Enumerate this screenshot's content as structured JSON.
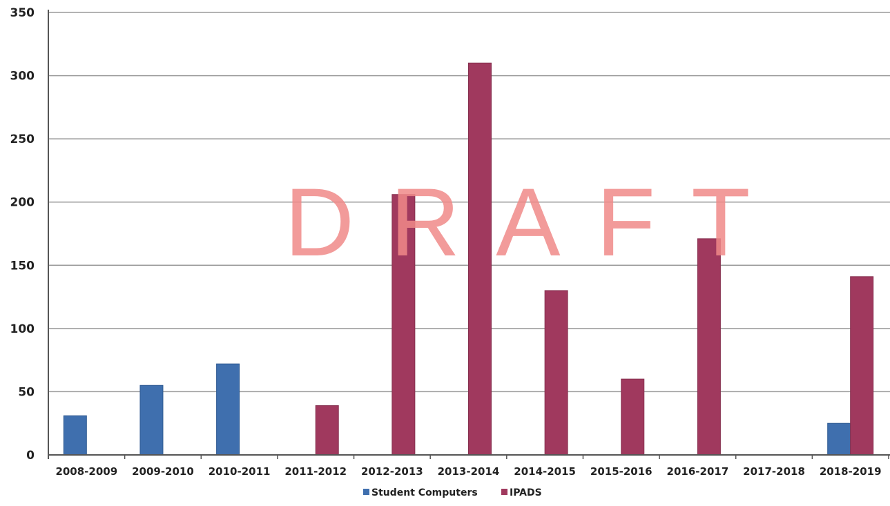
{
  "chart_data": {
    "type": "bar",
    "categories": [
      "2008-2009",
      "2009-2010",
      "2010-2011",
      "2011-2012",
      "2012-2013",
      "2013-2014",
      "2014-2015",
      "2015-2016",
      "2016-2017",
      "2017-2018",
      "2018-2019"
    ],
    "series": [
      {
        "name": "Student Computers",
        "color": "#3f6fae",
        "values": [
          31,
          55,
          72,
          0,
          0,
          0,
          0,
          0,
          0,
          0,
          25
        ]
      },
      {
        "name": "IPADS",
        "color": "#a0395e",
        "values": [
          0,
          0,
          0,
          39,
          206,
          310,
          130,
          60,
          171,
          0,
          141
        ]
      }
    ],
    "ylim": [
      0,
      350
    ],
    "yticks": [
      0,
      50,
      100,
      150,
      200,
      250,
      300,
      350
    ],
    "grid": true,
    "legend": "bottom",
    "watermark": "DRAFT"
  }
}
